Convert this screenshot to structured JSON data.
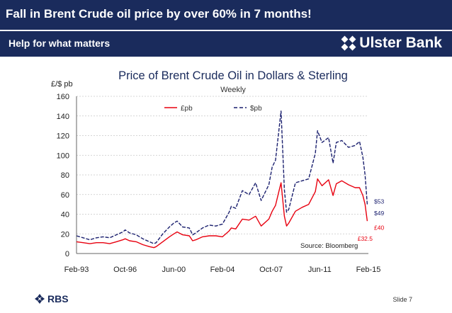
{
  "header": {
    "title": "Fall in Brent Crude oil price by over 60% in 7 months!",
    "tagline": "Help for what matters",
    "brand": "Ulster Bank",
    "brand_icon": "ulster-bank-logo-icon"
  },
  "footer": {
    "logo": "RBS",
    "logo_icon": "rbs-logo-icon",
    "slide_label": "Slide 7"
  },
  "colors": {
    "navy": "#1a2b5c",
    "gbp_series": "#e8000f",
    "usd_series": "#1a1f6e"
  },
  "chart_data": {
    "type": "line",
    "title": "Price of Brent Crude Oil in Dollars & Sterling",
    "subtitle": "Weekly",
    "ylabel": "£/$ pb",
    "ylim": [
      0,
      160
    ],
    "yticks": [
      "0",
      "20",
      "40",
      "60",
      "80",
      "100",
      "120",
      "140",
      "160"
    ],
    "xticks": [
      "Feb-93",
      "Oct-96",
      "Jun-00",
      "Feb-04",
      "Oct-07",
      "Jun-11",
      "Feb-15"
    ],
    "xlim": [
      "1993-02",
      "2015-02"
    ],
    "grid": "horizontal dashed",
    "legend_position": "top-center",
    "source": "Source: Bloomberg",
    "series": [
      {
        "name": "$pb",
        "style": "dashed",
        "color": "#1a1f6e",
        "x": [
          "1993-02",
          "1993-08",
          "1994-02",
          "1994-08",
          "1995-02",
          "1995-08",
          "1996-02",
          "1996-08",
          "1996-10",
          "1997-02",
          "1997-08",
          "1998-02",
          "1998-08",
          "1998-12",
          "1999-02",
          "1999-08",
          "2000-02",
          "2000-06",
          "2000-09",
          "2001-02",
          "2001-08",
          "2001-11",
          "2002-02",
          "2002-08",
          "2003-02",
          "2003-08",
          "2004-02",
          "2004-08",
          "2004-10",
          "2005-02",
          "2005-08",
          "2006-02",
          "2006-08",
          "2007-01",
          "2007-08",
          "2007-11",
          "2008-02",
          "2008-05",
          "2008-07",
          "2008-10",
          "2008-12",
          "2009-02",
          "2009-08",
          "2010-02",
          "2010-08",
          "2011-02",
          "2011-04",
          "2011-08",
          "2012-02",
          "2012-06",
          "2012-09",
          "2013-02",
          "2013-08",
          "2014-02",
          "2014-06",
          "2014-09",
          "2014-11",
          "2015-01"
        ],
        "values": [
          18,
          16,
          14,
          16,
          17,
          16,
          19,
          22,
          24,
          21,
          19,
          15,
          12,
          10,
          11,
          20,
          27,
          31,
          33,
          27,
          26,
          19,
          21,
          26,
          29,
          28,
          30,
          42,
          48,
          46,
          64,
          60,
          72,
          54,
          70,
          88,
          95,
          125,
          145,
          65,
          42,
          45,
          72,
          74,
          76,
          102,
          125,
          113,
          118,
          92,
          113,
          115,
          108,
          110,
          114,
          98,
          80,
          50
        ]
      },
      {
        "name": "£pb",
        "style": "solid",
        "color": "#e8000f",
        "x": [
          "1993-02",
          "1993-08",
          "1994-02",
          "1994-08",
          "1995-02",
          "1995-08",
          "1996-02",
          "1996-08",
          "1996-10",
          "1997-02",
          "1997-08",
          "1998-02",
          "1998-08",
          "1998-12",
          "1999-02",
          "1999-08",
          "2000-02",
          "2000-06",
          "2000-09",
          "2001-02",
          "2001-08",
          "2001-11",
          "2002-02",
          "2002-08",
          "2003-02",
          "2003-08",
          "2004-02",
          "2004-08",
          "2004-10",
          "2005-02",
          "2005-08",
          "2006-02",
          "2006-08",
          "2007-01",
          "2007-08",
          "2007-11",
          "2008-02",
          "2008-05",
          "2008-07",
          "2008-10",
          "2008-12",
          "2009-02",
          "2009-08",
          "2010-02",
          "2010-08",
          "2011-02",
          "2011-04",
          "2011-08",
          "2012-02",
          "2012-06",
          "2012-09",
          "2013-02",
          "2013-08",
          "2014-02",
          "2014-06",
          "2014-09",
          "2014-11",
          "2015-01"
        ],
        "values": [
          12,
          11,
          10,
          11,
          11,
          10,
          12,
          14,
          15,
          13,
          12,
          9,
          7,
          6,
          7,
          12,
          17,
          20,
          22,
          19,
          18,
          13,
          14,
          17,
          18,
          18,
          17,
          23,
          26,
          25,
          35,
          34,
          38,
          28,
          35,
          43,
          49,
          63,
          72,
          38,
          28,
          31,
          43,
          47,
          50,
          63,
          76,
          69,
          75,
          59,
          71,
          74,
          70,
          67,
          67,
          59,
          50,
          33
        ]
      }
    ],
    "annotations": [
      {
        "text": "$53",
        "series": "$pb",
        "color": "#1a1f6e",
        "value": 53
      },
      {
        "text": "$49",
        "series": "$pb",
        "color": "#1a1f6e",
        "value": 49
      },
      {
        "text": "£40",
        "series": "£pb",
        "color": "#e8000f",
        "value": 40
      },
      {
        "text": "£32.5",
        "series": "£pb",
        "color": "#e8000f",
        "value": 32.5
      }
    ]
  }
}
